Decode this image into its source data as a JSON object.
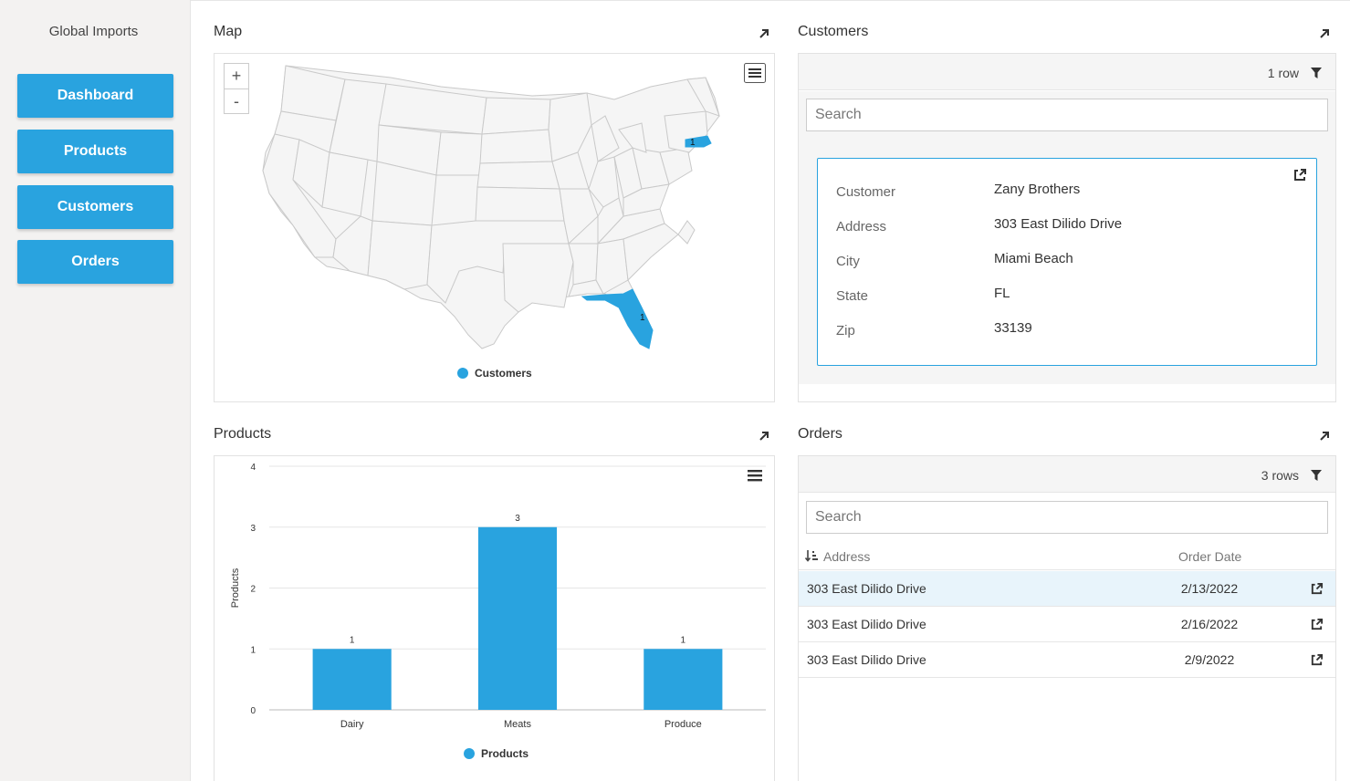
{
  "app": {
    "title": "Global Imports"
  },
  "nav": {
    "items": [
      {
        "label": "Dashboard"
      },
      {
        "label": "Products"
      },
      {
        "label": "Customers"
      },
      {
        "label": "Orders"
      }
    ]
  },
  "map_panel": {
    "title": "Map",
    "zoom_in": "+",
    "zoom_out": "-",
    "legend": "Customers",
    "markers": [
      {
        "state": "FL",
        "value": "1"
      },
      {
        "state": "MA",
        "value": "1"
      }
    ],
    "highlight_color": "#29a3df"
  },
  "customers_panel": {
    "title": "Customers",
    "row_count": "1 row",
    "search_placeholder": "Search",
    "record": [
      {
        "label": "Customer",
        "value": "Zany Brothers"
      },
      {
        "label": "Address",
        "value": "303 East Dilido Drive"
      },
      {
        "label": "City",
        "value": "Miami Beach"
      },
      {
        "label": "State",
        "value": "FL"
      },
      {
        "label": "Zip",
        "value": "33139"
      }
    ]
  },
  "products_panel": {
    "title": "Products",
    "legend": "Products"
  },
  "orders_panel": {
    "title": "Orders",
    "row_count": "3 rows",
    "search_placeholder": "Search",
    "columns": {
      "address": "Address",
      "order_date": "Order Date"
    },
    "rows": [
      {
        "address": "303 East Dilido Drive",
        "order_date": "2/13/2022",
        "selected": true
      },
      {
        "address": "303 East Dilido Drive",
        "order_date": "2/16/2022",
        "selected": false
      },
      {
        "address": "303 East Dilido Drive",
        "order_date": "2/9/2022",
        "selected": false
      }
    ]
  },
  "colors": {
    "accent": "#29a3df",
    "sidebar_bg": "#f3f2f1"
  },
  "chart_data": {
    "type": "bar",
    "categories": [
      "Dairy",
      "Meats",
      "Produce"
    ],
    "series": [
      {
        "name": "Products",
        "values": [
          1,
          3,
          1
        ]
      }
    ],
    "xlabel": "",
    "ylabel": "Products",
    "ylim": [
      0,
      4
    ],
    "yticks": [
      0,
      1,
      2,
      3,
      4
    ],
    "data_labels": [
      "1",
      "3",
      "1"
    ],
    "grid": true,
    "legend_position": "bottom"
  }
}
